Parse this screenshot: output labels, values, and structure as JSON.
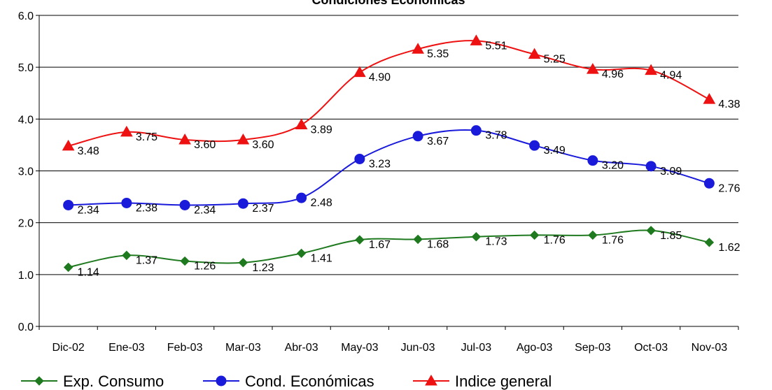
{
  "chart_data": {
    "type": "line",
    "title": "Condiciones Económicas",
    "xlabel": "",
    "ylabel": "",
    "categories": [
      "Dic-02",
      "Ene-03",
      "Feb-03",
      "Mar-03",
      "Abr-03",
      "May-03",
      "Jun-03",
      "Jul-03",
      "Ago-03",
      "Sep-03",
      "Oct-03",
      "Nov-03"
    ],
    "ylim": [
      0,
      6
    ],
    "yticks": [
      "0.0",
      "1.0",
      "2.0",
      "3.0",
      "4.0",
      "5.0",
      "6.0"
    ],
    "grid": "horizontal",
    "legend_position": "bottom",
    "series": [
      {
        "name": "Exp. Consumo",
        "color": "#1f7a1f",
        "marker": "diamond",
        "values": [
          1.14,
          1.37,
          1.26,
          1.23,
          1.41,
          1.67,
          1.68,
          1.73,
          1.76,
          1.76,
          1.85,
          1.62
        ],
        "labels": [
          "1.14",
          "1.37",
          "1.26",
          "1.23",
          "1.41",
          "1.67",
          "1.68",
          "1.73",
          "1.76",
          "1.76",
          "1.85",
          "1.62"
        ]
      },
      {
        "name": "Cond. Económicas",
        "color": "#1a1adb",
        "marker": "circle",
        "values": [
          2.34,
          2.38,
          2.34,
          2.37,
          2.48,
          3.23,
          3.67,
          3.78,
          3.49,
          3.2,
          3.09,
          2.76
        ],
        "labels": [
          "2.34",
          "2.38",
          "2.34",
          "2.37",
          "2.48",
          "3.23",
          "3.67",
          "3.78",
          "3.49",
          "3.20",
          "3.09",
          "2.76"
        ]
      },
      {
        "name": "Indice general",
        "color": "#ee1111",
        "marker": "triangle",
        "values": [
          3.48,
          3.75,
          3.6,
          3.6,
          3.89,
          4.9,
          5.35,
          5.51,
          5.25,
          4.96,
          4.94,
          4.38
        ],
        "labels": [
          "3.48",
          "3.75",
          "3.60",
          "3.60",
          "3.89",
          "4.90",
          "5.35",
          "5.51",
          "5.25",
          "4.96",
          "4.94",
          "4.38"
        ]
      }
    ]
  }
}
